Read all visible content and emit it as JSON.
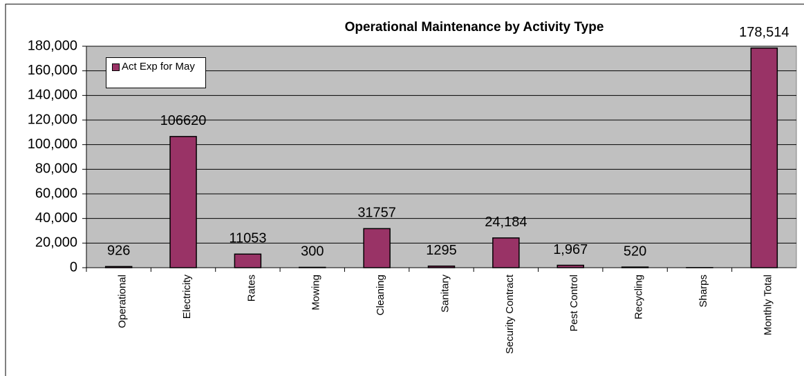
{
  "chart_data": {
    "type": "bar",
    "title": "Operational Maintenance by Activity Type",
    "categories": [
      "Operational",
      "Electricity",
      "Rates",
      "Mowing",
      "Cleaning",
      "Sanitary",
      "Security Contract",
      "Pest Control",
      "Recycling",
      "Sharps",
      "Monthly Total"
    ],
    "series": [
      {
        "name": "Act Exp for May",
        "color": "#993366",
        "values": [
          926,
          106620,
          11053,
          300,
          31757,
          1295,
          24184,
          1967,
          520,
          100,
          178514
        ],
        "value_labels": [
          "926",
          "106620",
          "11053",
          "300",
          "31757",
          "1295",
          "24,184",
          "1,967",
          "520",
          null,
          "178,514"
        ]
      }
    ],
    "ylim": [
      0,
      180000
    ],
    "yticks": [
      0,
      {
        "value": 20000,
        "label": "20,000"
      },
      {
        "value": 40000,
        "label": "40,000"
      },
      {
        "value": 60000,
        "label": "60,000"
      },
      {
        "value": 80000,
        "label": "80,000"
      },
      {
        "value": 100000,
        "label": "100,000"
      },
      {
        "value": 120000,
        "label": "120,000"
      },
      {
        "value": 140000,
        "label": "140,000"
      },
      {
        "value": 160000,
        "label": "160,000"
      },
      {
        "value": 180000,
        "label": "180,000"
      }
    ],
    "grid": true,
    "legend": "upper left"
  }
}
